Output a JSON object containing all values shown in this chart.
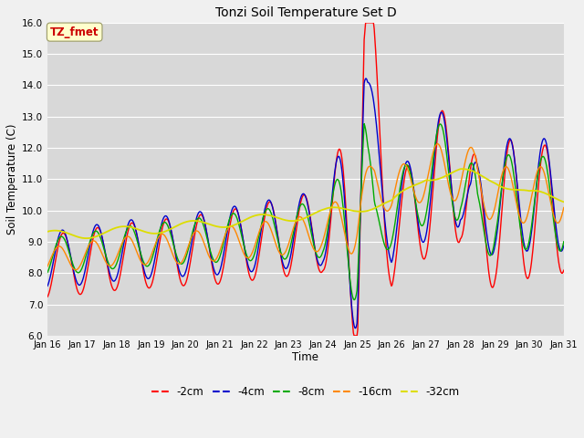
{
  "title": "Tonzi Soil Temperature Set D",
  "xlabel": "Time",
  "ylabel": "Soil Temperature (C)",
  "ylim": [
    6.0,
    16.0
  ],
  "yticks": [
    6.0,
    7.0,
    8.0,
    9.0,
    10.0,
    11.0,
    12.0,
    13.0,
    14.0,
    15.0,
    16.0
  ],
  "xtick_labels": [
    "Jan 16",
    "Jan 17",
    "Jan 18",
    "Jan 19",
    "Jan 20",
    "Jan 21",
    "Jan 22",
    "Jan 23",
    "Jan 24",
    "Jan 25",
    "Jan 26",
    "Jan 27",
    "Jan 28",
    "Jan 29",
    "Jan 30",
    "Jan 31"
  ],
  "annotation_text": "TZ_fmet",
  "annotation_color": "#cc0000",
  "annotation_bg": "#ffffcc",
  "line_colors": {
    "-2cm": "#ff0000",
    "-4cm": "#0000cc",
    "-8cm": "#00aa00",
    "-16cm": "#ff8800",
    "-32cm": "#dddd00"
  }
}
